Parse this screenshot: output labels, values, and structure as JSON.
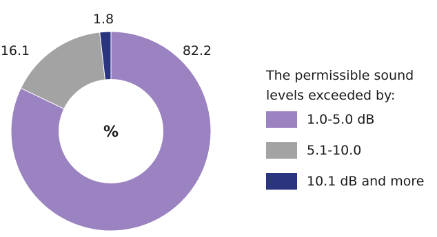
{
  "chart_data": {
    "type": "pie",
    "variant": "donut",
    "center_label": "%",
    "legend_title": "The permissible sound levels exceeded by:",
    "legend_position": "right",
    "slices": [
      {
        "label": "1.0-5.0 dB",
        "value": 82.2,
        "value_label": "82.2",
        "color": "#9b82c0"
      },
      {
        "label": "5.1-10.0",
        "value": 16.1,
        "value_label": "16.1",
        "color": "#a3a3a3"
      },
      {
        "label": "10.1 dB and more",
        "value": 1.8,
        "value_label": "1.8",
        "color": "#2b347e"
      }
    ]
  }
}
